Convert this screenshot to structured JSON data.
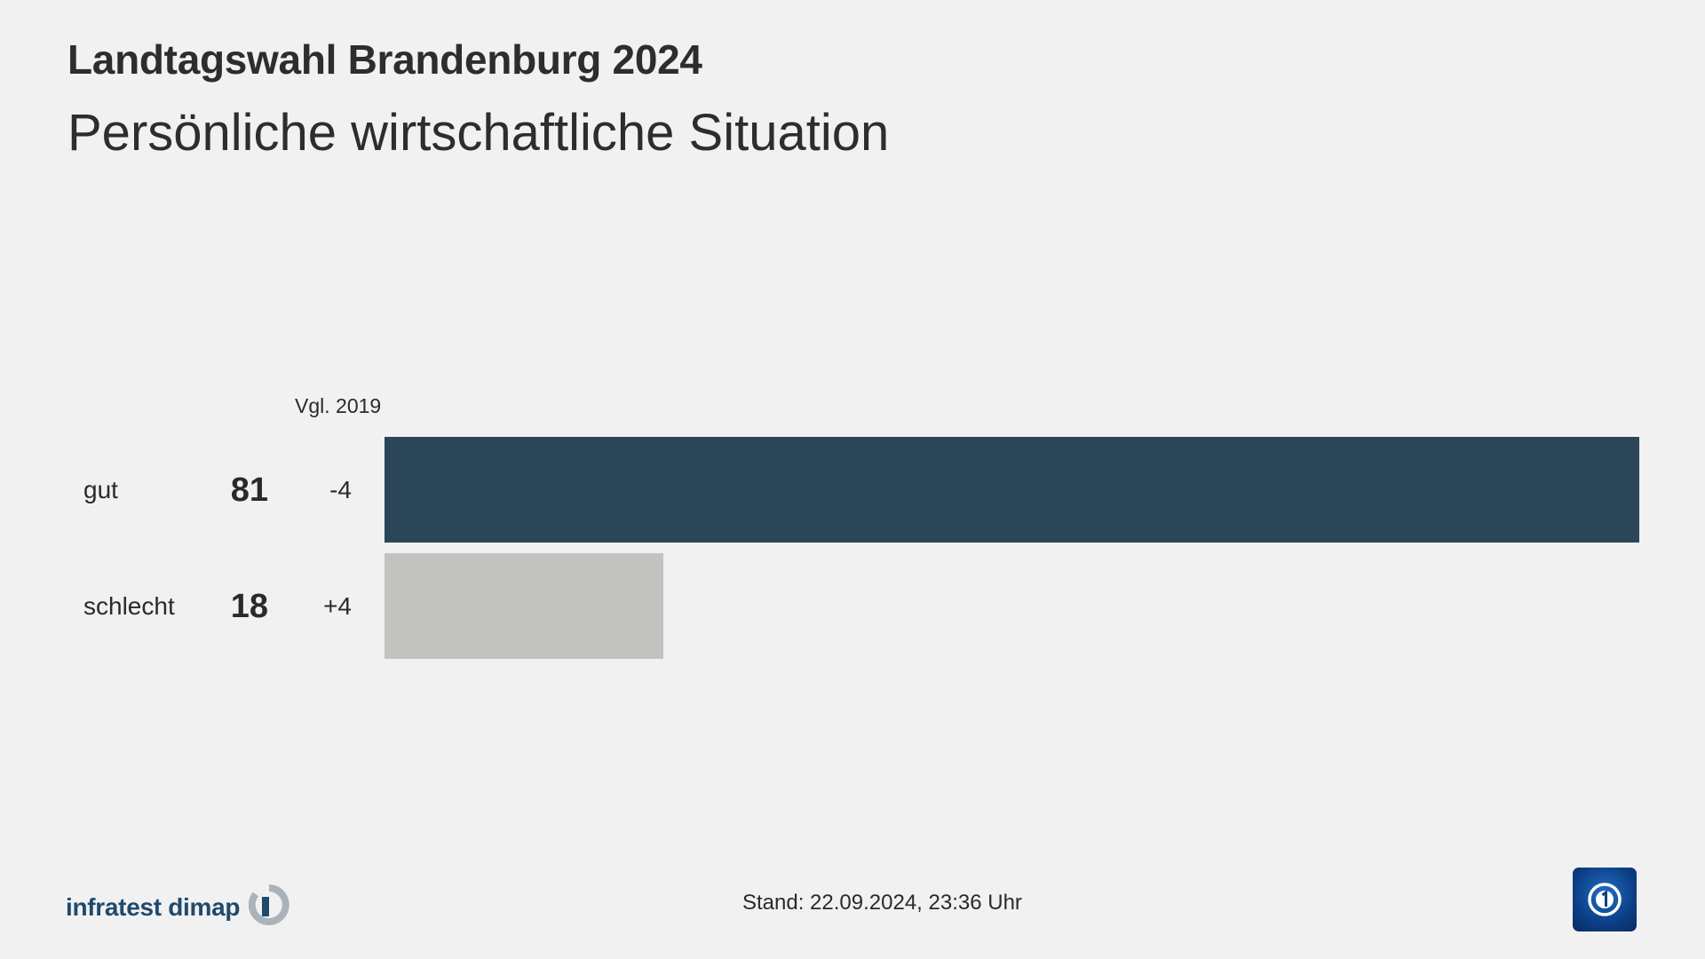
{
  "header": {
    "title": "Landtagswahl Brandenburg 2024",
    "subtitle": "Persönliche wirtschaftliche Situation"
  },
  "comparison_header": "Vgl. 2019",
  "chart_data": {
    "type": "bar",
    "orientation": "horizontal",
    "title": "Landtagswahl Brandenburg 2024",
    "subtitle": "Persönliche wirtschaftliche Situation",
    "categories": [
      "gut",
      "schlecht"
    ],
    "values": [
      81,
      18
    ],
    "value_labels": [
      "81",
      "18"
    ],
    "comparison_label": "Vgl. 2019",
    "comparison": [
      "-4",
      "+4"
    ],
    "colors": [
      "#2b4659",
      "#c2c2c1"
    ],
    "xlim": [
      0,
      81
    ],
    "grid": false,
    "legend": "none"
  },
  "footer": {
    "stand": "Stand:  22.09.2024, 23:36 Uhr",
    "brand": "infratest dimap"
  },
  "icons": {
    "brand_logo": "infratest-dimap-logo",
    "broadcaster_logo": "ard-das-erste-logo"
  },
  "colors": {
    "background": "#f1f1f1",
    "text": "#2a2a2a",
    "brand": "#1f4a6d"
  }
}
